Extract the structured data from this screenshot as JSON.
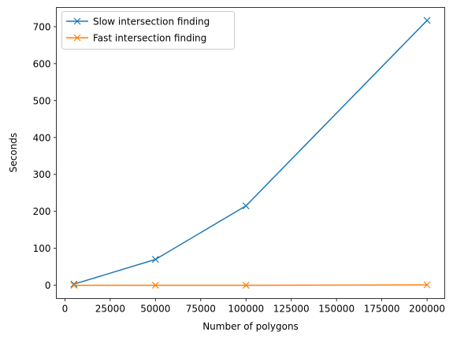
{
  "chart_data": {
    "type": "line",
    "xlabel": "Number of polygons",
    "ylabel": "Seconds",
    "xlim": [
      -4750,
      209750
    ],
    "ylim": [
      -36,
      752
    ],
    "xticks": [
      0,
      25000,
      50000,
      75000,
      100000,
      125000,
      150000,
      175000,
      200000
    ],
    "yticks": [
      0,
      100,
      200,
      300,
      400,
      500,
      600,
      700
    ],
    "grid": false,
    "legend": "top-left",
    "series": [
      {
        "name": "Slow intersection finding",
        "color": "#1f77b4",
        "marker": "x",
        "x": [
          5000,
          50000,
          100000,
          200000
        ],
        "y": [
          3,
          70,
          215,
          717
        ]
      },
      {
        "name": "Fast intersection finding",
        "color": "#ff7f0e",
        "marker": "x",
        "x": [
          5000,
          50000,
          100000,
          200000
        ],
        "y": [
          0,
          0,
          0,
          1
        ]
      }
    ]
  }
}
